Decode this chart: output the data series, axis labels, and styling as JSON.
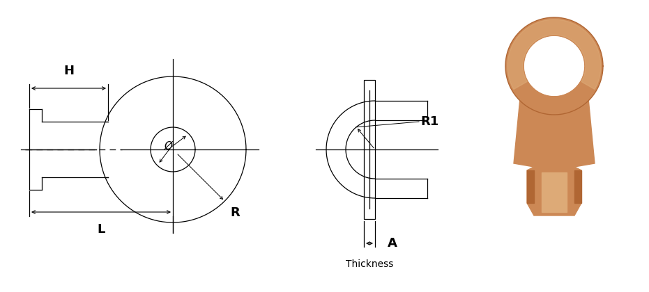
{
  "bg_color": "#ffffff",
  "line_color": "#000000",
  "fig_width": 9.31,
  "fig_height": 4.2,
  "lw_thin": 0.9,
  "labels": {
    "H": "H",
    "L": "L",
    "R": "R",
    "phi": "Ø",
    "R1": "R1",
    "A": "A",
    "Thickness": "Thickness"
  },
  "font_size_bold": 13,
  "font_size_small": 9,
  "copper_main": "#cc8855",
  "copper_dark": "#b06633",
  "copper_light": "#ddaa77",
  "copper_inner": "#c09060"
}
